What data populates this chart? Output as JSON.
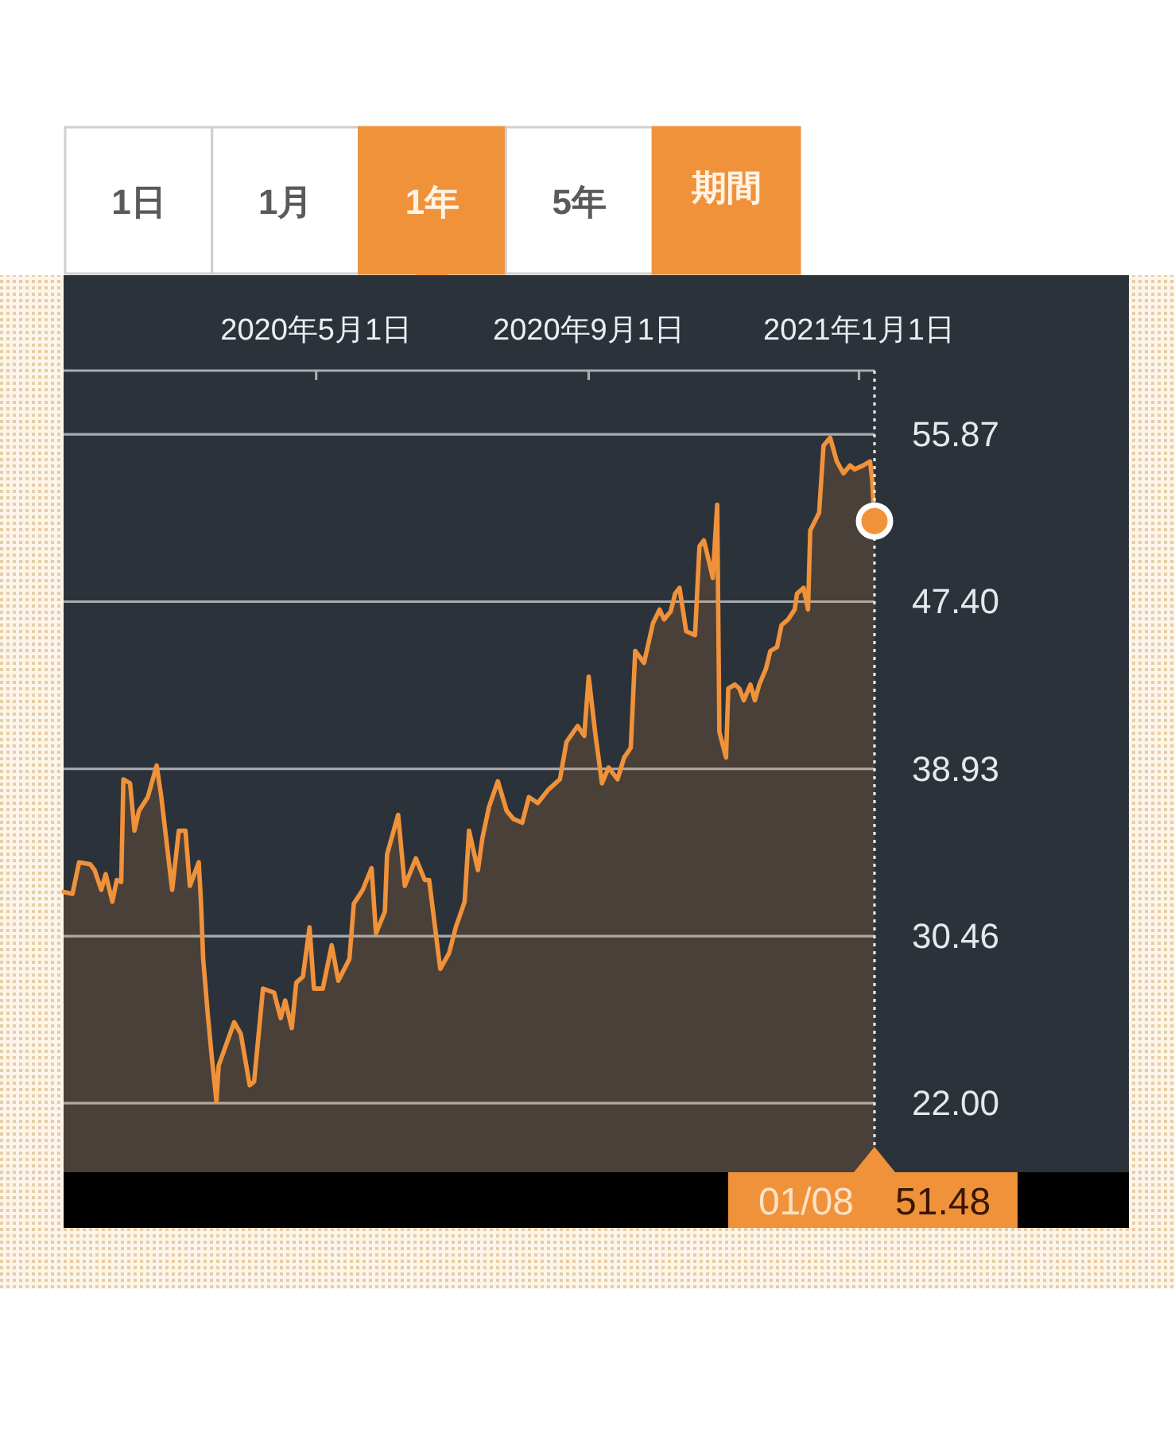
{
  "chart_data": {
    "type": "area",
    "x": [
      "2020-01-08",
      "2020-01-12",
      "2020-01-15",
      "2020-01-20",
      "2020-01-22",
      "2020-01-25",
      "2020-01-27",
      "2020-01-30",
      "2020-02-01",
      "2020-02-03",
      "2020-02-04",
      "2020-02-07",
      "2020-02-09",
      "2020-02-11",
      "2020-02-15",
      "2020-02-19",
      "2020-02-21",
      "2020-02-26",
      "2020-02-29",
      "2020-03-03",
      "2020-03-05",
      "2020-03-09",
      "2020-03-10",
      "2020-03-11",
      "2020-03-13",
      "2020-03-15",
      "2020-03-17",
      "2020-03-18",
      "2020-03-25",
      "2020-03-28",
      "2020-04-01",
      "2020-04-03",
      "2020-04-07",
      "2020-04-12",
      "2020-04-15",
      "2020-04-17",
      "2020-04-20",
      "2020-04-22",
      "2020-04-25",
      "2020-04-28",
      "2020-04-30",
      "2020-05-04",
      "2020-05-08",
      "2020-05-11",
      "2020-05-16",
      "2020-05-18",
      "2020-05-22",
      "2020-05-26",
      "2020-05-28",
      "2020-06-01",
      "2020-06-02",
      "2020-06-07",
      "2020-06-10",
      "2020-06-15",
      "2020-06-19",
      "2020-06-21",
      "2020-06-26",
      "2020-06-30",
      "2020-07-03",
      "2020-07-07",
      "2020-07-09",
      "2020-07-13",
      "2020-07-15",
      "2020-07-18",
      "2020-07-22",
      "2020-07-26",
      "2020-07-29",
      "2020-08-02",
      "2020-08-05",
      "2020-08-09",
      "2020-08-14",
      "2020-08-19",
      "2020-08-22",
      "2020-08-27",
      "2020-08-30",
      "2020-09-01",
      "2020-09-04",
      "2020-09-07",
      "2020-09-10",
      "2020-09-14",
      "2020-09-17",
      "2020-09-20",
      "2020-09-22",
      "2020-09-26",
      "2020-09-30",
      "2020-10-03",
      "2020-10-05",
      "2020-10-08",
      "2020-10-10",
      "2020-10-12",
      "2020-10-15",
      "2020-10-19",
      "2020-10-21",
      "2020-10-23",
      "2020-10-26",
      "2020-10-27",
      "2020-10-29",
      "2020-10-30",
      "2020-11-02",
      "2020-11-03",
      "2020-11-06",
      "2020-11-08",
      "2020-11-10",
      "2020-11-13",
      "2020-11-15",
      "2020-11-17",
      "2020-11-20",
      "2020-11-22",
      "2020-11-25",
      "2020-11-27",
      "2020-11-30",
      "2020-12-03",
      "2020-12-04",
      "2020-12-07",
      "2020-12-09",
      "2020-12-10",
      "2020-12-14",
      "2020-12-16",
      "2020-12-19",
      "2020-12-22",
      "2020-12-25",
      "2020-12-28",
      "2020-12-30",
      "2021-01-03",
      "2021-01-06",
      "2021-01-07",
      "2021-01-08"
    ],
    "series": [
      {
        "color": "#f0923a",
        "values": [
          32.7,
          32.6,
          34.2,
          34.1,
          33.8,
          32.8,
          33.6,
          32.2,
          33.3,
          33.2,
          38.4,
          38.2,
          35.8,
          36.8,
          37.5,
          39.1,
          37.6,
          32.8,
          35.8,
          35.8,
          33.0,
          34.2,
          32.2,
          29.3,
          26.6,
          24.2,
          22.1,
          23.9,
          26.1,
          25.5,
          22.9,
          23.1,
          27.8,
          27.6,
          26.3,
          27.2,
          25.8,
          28.1,
          28.4,
          30.9,
          27.8,
          27.8,
          30.0,
          28.2,
          29.3,
          32.1,
          32.8,
          33.9,
          30.6,
          31.7,
          34.6,
          36.6,
          33.0,
          34.4,
          33.3,
          33.3,
          28.8,
          29.6,
          30.9,
          32.2,
          35.8,
          33.8,
          35.4,
          37.0,
          38.3,
          36.8,
          36.4,
          36.2,
          37.5,
          37.2,
          37.9,
          38.4,
          40.3,
          41.1,
          40.6,
          43.6,
          40.7,
          38.2,
          39.0,
          38.4,
          39.5,
          40.0,
          44.9,
          44.3,
          46.3,
          47.0,
          46.5,
          46.9,
          47.8,
          48.1,
          45.9,
          45.7,
          50.2,
          50.5,
          49.1,
          48.6,
          52.3,
          40.8,
          39.5,
          43.0,
          43.2,
          43.0,
          42.4,
          43.2,
          42.4,
          43.2,
          44.0,
          44.9,
          45.1,
          46.2,
          46.5,
          47.0,
          47.8,
          48.1,
          47.0,
          51.0,
          51.9,
          55.3,
          55.7,
          54.5,
          53.9,
          54.3,
          54.1,
          54.3,
          54.5,
          53.5,
          51.48
        ]
      },
      {
        "type": "scatter",
        "x": [
          "2021-01-08"
        ],
        "values": [
          51.48
        ],
        "color": "#f0923a",
        "marker": "circle"
      }
    ],
    "xlim": [
      "2020-01-08",
      "2021-01-08"
    ],
    "xticks": [
      {
        "value": "2020-05-01",
        "label": "2020年5月1日"
      },
      {
        "value": "2020-09-01",
        "label": "2020年9月1日"
      },
      {
        "value": "2021-01-01",
        "label": "2021年1月1日"
      }
    ],
    "ylim": [
      18.5,
      59.1
    ],
    "yticks": [
      {
        "value": 22,
        "label": "22.00"
      },
      30.46,
      38.93,
      {
        "value": 47.4,
        "label": "47.40"
      },
      55.87
    ],
    "grid": "y",
    "ref_lines": [
      {
        "axis": "x",
        "value": "2021-01-08",
        "label": "01/08 51.48",
        "line_style": "dotted",
        "color": "#e8e8e8"
      }
    ],
    "annotations": [
      "1日",
      "1月",
      "1年",
      "5年",
      "期間"
    ]
  }
}
